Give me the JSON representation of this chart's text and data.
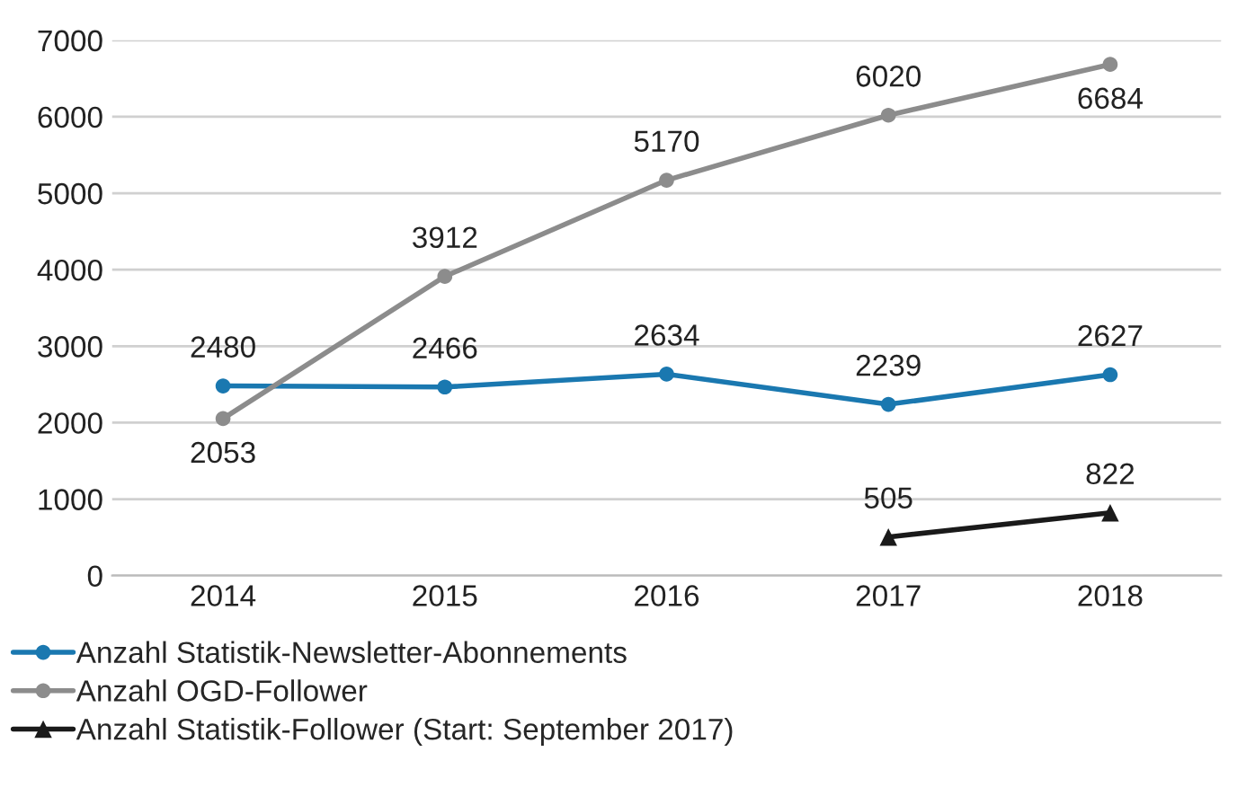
{
  "chart_data": {
    "type": "line",
    "categories": [
      "2014",
      "2015",
      "2016",
      "2017",
      "2018"
    ],
    "series": [
      {
        "name": "Anzahl Statistik-Newsletter-Abonnements",
        "color": "#1a78b0",
        "marker": "circle",
        "values": [
          2480,
          2466,
          2634,
          2239,
          2627
        ]
      },
      {
        "name": "Anzahl OGD-Follower",
        "color": "#8c8c8c",
        "marker": "circle",
        "values": [
          2053,
          3912,
          5170,
          6020,
          6684
        ]
      },
      {
        "name": "Anzahl Statistik-Follower (Start: September 2017)",
        "color": "#1a1a1a",
        "marker": "triangle",
        "values": [
          null,
          null,
          null,
          505,
          822
        ]
      }
    ],
    "ylim": [
      0,
      7000
    ],
    "yticks": [
      0,
      1000,
      2000,
      3000,
      4000,
      5000,
      6000,
      7000
    ],
    "grid": "y",
    "legend": "bottom left",
    "data_labels": true,
    "line_style": "solid"
  }
}
